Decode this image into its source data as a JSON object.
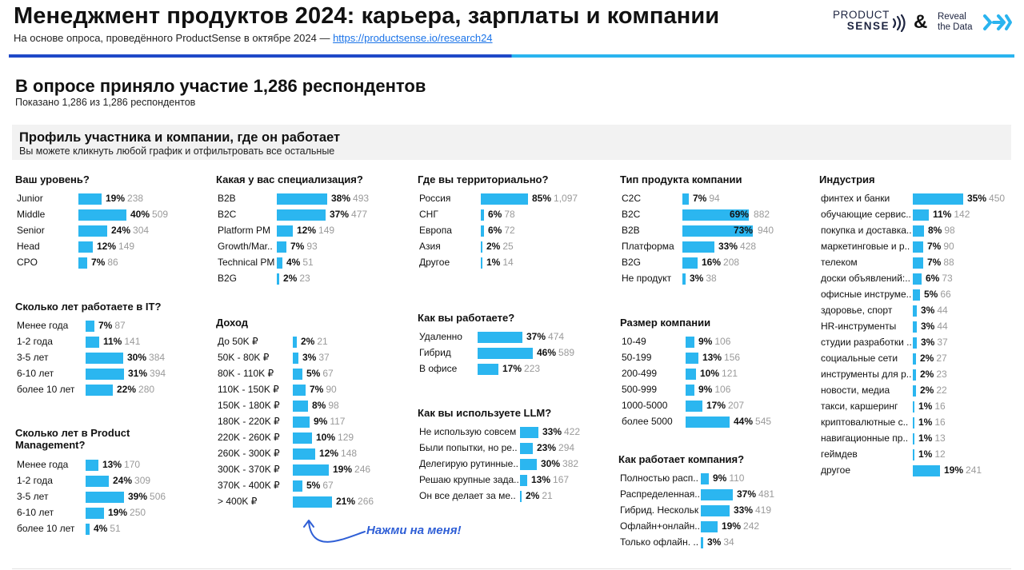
{
  "header": {
    "title": "Менеджмент продуктов 2024: карьера, зарплаты и компании",
    "subtitle_prefix": "На основе опроса, проведённого ProductSense в октябре 2024 — ",
    "subtitle_link": "https://productsense.io/research24"
  },
  "logos": {
    "product": "PRODUCT",
    "sense": "SENSE",
    "amp": "&",
    "reveal_line1": "Reveal",
    "reveal_line2": "the Data"
  },
  "summary": {
    "title": "В опросе приняло участие 1,286 респондентов",
    "shown": "Показано 1,286 из 1,286 респондентов"
  },
  "profile": {
    "title": "Профиль участника и компании, где он работает",
    "subtitle": "Вы можете кликнуть любой график и отфильтровать все остальные"
  },
  "hint": "Нажми на меня!",
  "colors": {
    "bar": "#2bb6f0",
    "accent_dark": "#1f49c8",
    "accent_light": "#2ab4ef",
    "hint": "#2f5fd6"
  },
  "chart_data": [
    {
      "type": "bar",
      "title": "Ваш уровень?",
      "categories": [
        "Junior",
        "Middle",
        "Senior",
        "Head",
        "CPO"
      ],
      "values": [
        19,
        40,
        24,
        12,
        7
      ],
      "counts": [
        238,
        509,
        304,
        149,
        86
      ]
    },
    {
      "type": "bar",
      "title": "Сколько лет работаете в IT?",
      "categories": [
        "Менее года",
        "1-2 года",
        "3-5 лет",
        "6-10 лет",
        "более 10 лет"
      ],
      "values": [
        7,
        11,
        30,
        31,
        22
      ],
      "counts": [
        87,
        141,
        384,
        394,
        280
      ]
    },
    {
      "type": "bar",
      "title": "Сколько лет в Product Management?",
      "categories": [
        "Менее года",
        "1-2 года",
        "3-5 лет",
        "6-10 лет",
        "более 10 лет"
      ],
      "values": [
        13,
        24,
        39,
        19,
        4
      ],
      "counts": [
        170,
        309,
        506,
        250,
        51
      ]
    },
    {
      "type": "bar",
      "title": "Какая у вас специализация?",
      "categories": [
        "B2B",
        "B2C",
        "Platform PM",
        "Growth/Mar..",
        "Technical PM",
        "B2G"
      ],
      "values": [
        38,
        37,
        12,
        7,
        4,
        2
      ],
      "counts": [
        493,
        477,
        149,
        93,
        51,
        23
      ]
    },
    {
      "type": "bar",
      "title": "Доход",
      "categories": [
        "До 50K ₽",
        "50K - 80K ₽",
        "80K - 110K ₽",
        "110K - 150K ₽",
        "150K - 180K ₽",
        "180K - 220K ₽",
        "220K - 260K ₽",
        "260K - 300K ₽",
        "300K - 370K ₽",
        "370K - 400K ₽",
        "> 400K ₽"
      ],
      "values": [
        2,
        3,
        5,
        7,
        8,
        9,
        10,
        12,
        19,
        5,
        21
      ],
      "counts": [
        21,
        37,
        67,
        90,
        98,
        117,
        129,
        148,
        246,
        67,
        266
      ]
    },
    {
      "type": "bar",
      "title": "Где вы территориально?",
      "categories": [
        "Россия",
        "СНГ",
        "Европа",
        "Азия",
        "Другое"
      ],
      "values": [
        85,
        6,
        6,
        2,
        1
      ],
      "counts": [
        "1,097",
        78,
        72,
        25,
        14
      ]
    },
    {
      "type": "bar",
      "title": "Как вы работаете?",
      "categories": [
        "Удаленно",
        "Гибрид",
        "В офисе"
      ],
      "values": [
        37,
        46,
        17
      ],
      "counts": [
        474,
        589,
        223
      ]
    },
    {
      "type": "bar",
      "title": "Как вы используете LLM?",
      "categories": [
        "Не использую совсем",
        "Были попытки, но ре..",
        "Делегирую рутинные..",
        "Решаю крупные зада..",
        "Он все делает за ме.."
      ],
      "values": [
        33,
        23,
        30,
        13,
        2
      ],
      "counts": [
        422,
        294,
        382,
        167,
        21
      ]
    },
    {
      "type": "bar",
      "title": "Тип продукта компании",
      "categories": [
        "C2C",
        "B2C",
        "B2B",
        "Платформа",
        "B2G",
        "Не продукт"
      ],
      "values": [
        7,
        69,
        73,
        33,
        16,
        3
      ],
      "counts": [
        94,
        882,
        940,
        428,
        208,
        38
      ]
    },
    {
      "type": "bar",
      "title": "Размер компании",
      "categories": [
        "10-49",
        "50-199",
        "200-499",
        "500-999",
        "1000-5000",
        "более 5000"
      ],
      "values": [
        9,
        13,
        10,
        9,
        17,
        44
      ],
      "counts": [
        106,
        156,
        121,
        106,
        207,
        545
      ]
    },
    {
      "type": "bar",
      "title": "Как работает компания?",
      "categories": [
        "Полностью расп..",
        "Распределенная..",
        "Гибрид. Нескольк..",
        "Офлайн+онлайн..",
        "Только офлайн. .."
      ],
      "values": [
        9,
        37,
        33,
        19,
        3
      ],
      "counts": [
        110,
        481,
        419,
        242,
        34
      ]
    },
    {
      "type": "bar",
      "title": "Индустрия",
      "categories": [
        "финтех и банки",
        "обучающие сервис..",
        "покупка и доставка..",
        "маркетинговые и р..",
        "телеком",
        "доски объявлений:..",
        "офисные инструме..",
        "здоровье, спорт",
        "HR-инструменты",
        "студии разработки ..",
        "социальные сети",
        "инструменты для р..",
        "новости, медиа",
        "такси, каршеринг",
        "криптовалютные с..",
        "навигационные пр..",
        "геймдев",
        "другое"
      ],
      "values": [
        35,
        11,
        8,
        7,
        7,
        6,
        5,
        3,
        3,
        3,
        2,
        2,
        2,
        1,
        1,
        1,
        1,
        19
      ],
      "counts": [
        450,
        142,
        98,
        90,
        88,
        73,
        66,
        44,
        44,
        37,
        27,
        23,
        22,
        16,
        16,
        13,
        12,
        241
      ]
    }
  ]
}
